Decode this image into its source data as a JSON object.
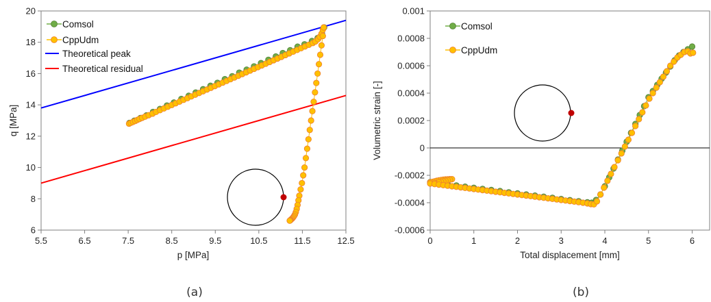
{
  "charts": [
    {
      "caption": "(a)",
      "chart_data": {
        "type": "scatter",
        "xlabel": "p [MPa]",
        "ylabel": "q [MPa]",
        "xlim": [
          5.5,
          12.5
        ],
        "ylim": [
          6,
          20
        ],
        "xticks": [
          "5.5",
          "6.5",
          "7.5",
          "8.5",
          "9.5",
          "10.5",
          "11.5",
          "12.5"
        ],
        "yticks": [
          "6",
          "8",
          "10",
          "12",
          "14",
          "16",
          "18",
          "20"
        ],
        "grid": false,
        "legend_position": "top-left",
        "series": [
          {
            "name": "Comsol",
            "kind": "markers",
            "color": "#70ad47",
            "x": [
              7.53,
              7.64,
              7.78,
              7.92,
              8.07,
              8.23,
              8.39,
              8.55,
              8.72,
              8.89,
              9.05,
              9.22,
              9.39,
              9.55,
              9.72,
              9.89,
              10.05,
              10.22,
              10.39,
              10.55,
              10.72,
              10.89,
              11.05,
              11.22,
              11.39,
              11.55,
              11.72,
              11.85,
              11.95,
              12.0
            ],
            "y": [
              12.85,
              12.99,
              13.16,
              13.33,
              13.55,
              13.74,
              13.96,
              14.15,
              14.38,
              14.58,
              14.79,
              15.0,
              15.22,
              15.41,
              15.64,
              15.83,
              16.06,
              16.25,
              16.46,
              16.67,
              16.88,
              17.09,
              17.31,
              17.49,
              17.72,
              17.87,
              18.08,
              18.27,
              18.55,
              18.95
            ]
          },
          {
            "name": "CppUdm",
            "kind": "markers",
            "color": "#ffc000",
            "x": [
              7.52,
              7.56,
              7.61,
              7.66,
              7.71,
              7.76,
              7.82,
              7.89,
              7.97,
              8.06,
              8.14,
              8.23,
              8.32,
              8.41,
              8.5,
              8.59,
              8.68,
              8.77,
              8.86,
              8.95,
              9.04,
              9.13,
              9.22,
              9.31,
              9.4,
              9.49,
              9.58,
              9.67,
              9.76,
              9.85,
              9.94,
              10.03,
              10.12,
              10.21,
              10.3,
              10.39,
              10.48,
              10.57,
              10.66,
              10.75,
              10.84,
              10.93,
              11.02,
              11.11,
              11.2,
              11.29,
              11.38,
              11.47,
              11.56,
              11.65,
              11.74,
              11.8,
              11.86,
              11.9,
              11.94,
              11.97,
              11.99,
              11.97,
              11.94,
              11.91,
              11.88,
              11.85,
              11.82,
              11.79,
              11.76,
              11.73,
              11.7,
              11.67,
              11.64,
              11.61,
              11.58,
              11.55,
              11.52,
              11.49,
              11.46,
              11.43,
              11.41,
              11.39,
              11.37,
              11.35,
              11.33,
              11.31,
              11.29,
              11.27,
              11.25,
              11.23,
              11.22,
              11.21
            ],
            "y": [
              12.8,
              12.85,
              12.91,
              12.97,
              13.04,
              13.1,
              13.17,
              13.25,
              13.34,
              13.44,
              13.55,
              13.66,
              13.77,
              13.88,
              13.99,
              14.1,
              14.21,
              14.32,
              14.43,
              14.54,
              14.65,
              14.76,
              14.87,
              14.98,
              15.09,
              15.2,
              15.31,
              15.42,
              15.53,
              15.64,
              15.75,
              15.86,
              15.97,
              16.08,
              16.19,
              16.3,
              16.41,
              16.52,
              16.63,
              16.74,
              16.85,
              16.96,
              17.07,
              17.18,
              17.29,
              17.4,
              17.51,
              17.62,
              17.73,
              17.84,
              17.95,
              18.05,
              18.2,
              18.35,
              18.55,
              18.8,
              18.95,
              18.4,
              17.8,
              17.2,
              16.6,
              16.0,
              15.4,
              14.8,
              14.2,
              13.6,
              13.0,
              12.4,
              11.8,
              11.2,
              10.6,
              10.0,
              9.5,
              9.0,
              8.6,
              8.2,
              7.9,
              7.6,
              7.35,
              7.15,
              7.0,
              6.9,
              6.82,
              6.75,
              6.7,
              6.65,
              6.62,
              6.6
            ]
          },
          {
            "name": "Theoretical peak",
            "kind": "line",
            "color": "#0000ff",
            "x": [
              5.5,
              12.5
            ],
            "y": [
              13.8,
              19.4
            ]
          },
          {
            "name": "Theoretical residual",
            "kind": "line",
            "color": "#ff0000",
            "x": [
              5.5,
              12.5
            ],
            "y": [
              9.0,
              14.6
            ]
          }
        ],
        "inset": {
          "shape": "circle",
          "marker_color": "#c00000"
        }
      }
    },
    {
      "caption": "(b)",
      "chart_data": {
        "type": "scatter",
        "xlabel": "Total displacement [mm]",
        "ylabel": "Volumetric strain [-]",
        "xlim": [
          0,
          6.4
        ],
        "ylim": [
          -0.0006,
          0.001
        ],
        "xticks": [
          "0",
          "1",
          "2",
          "3",
          "4",
          "5",
          "6"
        ],
        "yticks": [
          "-0.0006",
          "-0.0004",
          "-0.0002",
          "0",
          "0.0002",
          "0.0004",
          "0.0006",
          "0.0008",
          "0.001"
        ],
        "grid": false,
        "zero_line": true,
        "legend_position": "top-left",
        "series": [
          {
            "name": "Comsol",
            "kind": "markers",
            "color": "#70ad47",
            "x": [
              0.0,
              0.2,
              0.4,
              0.6,
              0.8,
              1.0,
              1.2,
              1.4,
              1.6,
              1.8,
              2.0,
              2.2,
              2.4,
              2.6,
              2.8,
              3.0,
              3.2,
              3.4,
              3.6,
              3.7,
              3.8,
              3.9,
              4.0,
              4.1,
              4.2,
              4.3,
              4.4,
              4.5,
              4.6,
              4.7,
              4.8,
              4.9,
              5.0,
              5.1,
              5.2,
              5.3,
              5.4,
              5.5,
              5.6,
              5.7,
              5.8,
              5.9,
              6.0
            ],
            "y": [
              -0.00025,
              -0.000258,
              -0.000266,
              -0.000274,
              -0.000283,
              -0.000291,
              -0.000299,
              -0.000307,
              -0.000315,
              -0.000324,
              -0.000332,
              -0.00034,
              -0.000348,
              -0.000356,
              -0.000364,
              -0.000373,
              -0.000381,
              -0.000389,
              -0.000397,
              -0.0004,
              -0.00038,
              -0.00034,
              -0.00028,
              -0.000215,
              -0.00015,
              -8.5e-05,
              -2e-05,
              4.5e-05,
              0.00011,
              0.000175,
              0.00024,
              0.000305,
              0.00037,
              0.000415,
              0.00046,
              0.000505,
              0.00055,
              0.000595,
              0.00064,
              0.000675,
              0.0007,
              0.00072,
              0.00074
            ]
          },
          {
            "name": "CppUdm",
            "kind": "markers",
            "color": "#ffc000",
            "x": [
              0.0,
              0.05,
              0.1,
              0.15,
              0.2,
              0.25,
              0.3,
              0.35,
              0.4,
              0.45,
              0.5,
              0.45,
              0.4,
              0.35,
              0.3,
              0.25,
              0.2,
              0.1,
              0.0,
              0.1,
              0.2,
              0.3,
              0.4,
              0.5,
              0.6,
              0.7,
              0.8,
              0.9,
              1.0,
              1.1,
              1.2,
              1.3,
              1.4,
              1.5,
              1.6,
              1.7,
              1.8,
              1.9,
              2.0,
              2.1,
              2.2,
              2.3,
              2.4,
              2.5,
              2.6,
              2.7,
              2.8,
              2.9,
              3.0,
              3.1,
              3.2,
              3.3,
              3.4,
              3.5,
              3.6,
              3.68,
              3.75,
              3.82,
              3.9,
              3.98,
              4.06,
              4.14,
              4.22,
              4.3,
              4.38,
              4.46,
              4.54,
              4.62,
              4.7,
              4.78,
              4.86,
              4.94,
              5.02,
              5.1,
              5.18,
              5.26,
              5.34,
              5.42,
              5.5,
              5.58,
              5.66,
              5.74,
              5.82,
              5.9,
              5.96,
              6.02
            ],
            "y": [
              -0.000252,
              -0.000248,
              -0.000244,
              -0.00024,
              -0.000237,
              -0.000234,
              -0.000232,
              -0.00023,
              -0.000229,
              -0.000228,
              -0.000228,
              -0.000232,
              -0.000236,
              -0.00024,
              -0.000244,
              -0.000248,
              -0.000252,
              -0.000256,
              -0.00026,
              -0.000264,
              -0.000268,
              -0.000272,
              -0.000276,
              -0.00028,
              -0.000284,
              -0.000288,
              -0.000292,
              -0.000296,
              -0.0003,
              -0.000304,
              -0.000308,
              -0.000312,
              -0.000316,
              -0.00032,
              -0.000324,
              -0.000328,
              -0.000332,
              -0.000336,
              -0.00034,
              -0.000344,
              -0.000348,
              -0.000352,
              -0.000356,
              -0.00036,
              -0.000364,
              -0.000368,
              -0.000372,
              -0.000376,
              -0.00038,
              -0.000384,
              -0.000388,
              -0.000392,
              -0.000396,
              -0.0004,
              -0.000405,
              -0.00041,
              -0.000412,
              -0.00039,
              -0.00034,
              -0.00029,
              -0.00024,
              -0.00019,
              -0.00014,
              -9e-05,
              -4e-05,
              1e-05,
              6e-05,
              0.00011,
              0.00016,
              0.00021,
              0.00026,
              0.00031,
              0.00036,
              0.0004,
              0.00044,
              0.00048,
              0.00052,
              0.00056,
              0.0006,
              0.00063,
              0.00066,
              0.00068,
              0.0007,
              0.000705,
              0.00069,
              0.000695
            ]
          }
        ],
        "inset": {
          "shape": "circle",
          "marker_color": "#c00000"
        }
      }
    }
  ]
}
